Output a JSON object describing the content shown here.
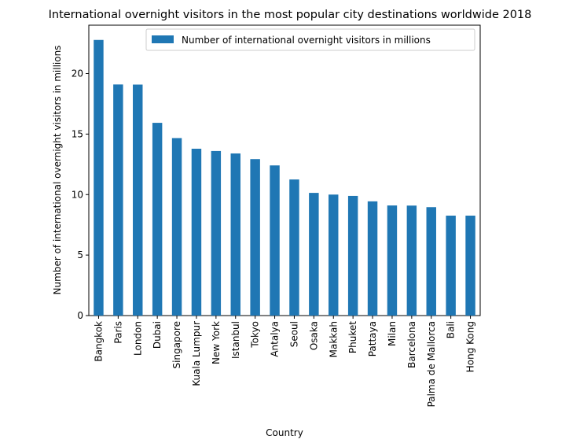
{
  "chart_data": {
    "type": "bar",
    "title": "International overnight visitors in the most popular city destinations worldwide 2018",
    "xlabel": "Country",
    "ylabel": "Number of international overnight visitors in millions",
    "categories": [
      "Bangkok",
      "Paris",
      "London",
      "Dubai",
      "Singapore",
      "Kuala Lumpur",
      "New York",
      "Istanbul",
      "Tokyo",
      "Antalya",
      "Seoul",
      "Osaka",
      "Makkah",
      "Phuket",
      "Pattaya",
      "Milan",
      "Barcelona",
      "Palma de Mallorca",
      "Bali",
      "Hong Kong"
    ],
    "series": [
      {
        "name": "Number of international overnight visitors in millions",
        "color": "#1f77b4",
        "values": [
          22.78,
          19.1,
          19.09,
          15.93,
          14.67,
          13.79,
          13.6,
          13.4,
          12.93,
          12.41,
          11.25,
          10.14,
          10.0,
          9.89,
          9.44,
          9.1,
          9.09,
          8.96,
          8.26,
          8.26
        ]
      }
    ],
    "ylim": [
      0,
      24
    ],
    "yticks": [
      0,
      5,
      10,
      15,
      20
    ],
    "grid": false,
    "legend_position": "top-right"
  }
}
